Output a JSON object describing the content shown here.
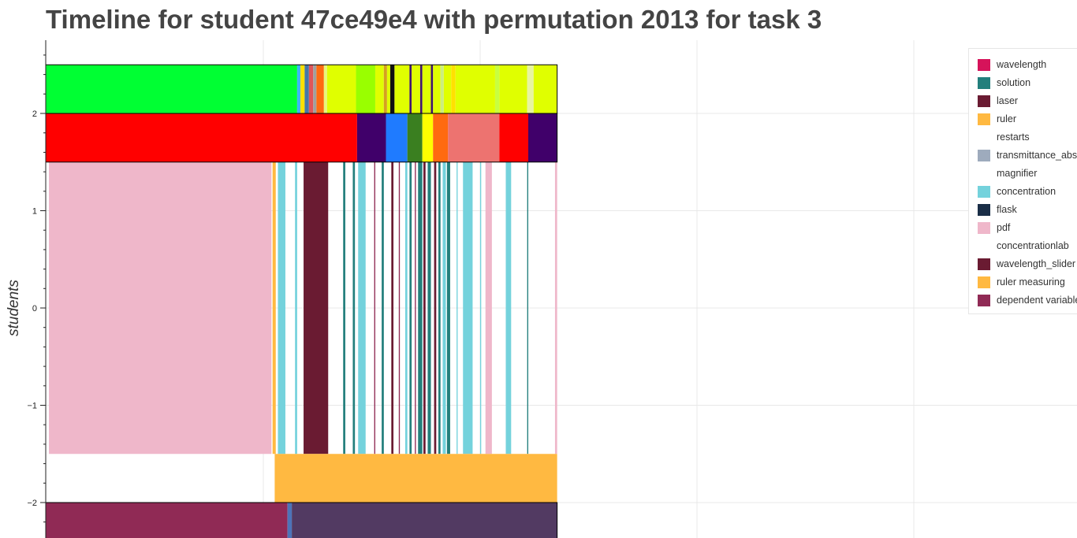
{
  "header": {
    "title": "Timeline for student 47ce49e4 with permutation 2013 for task 3"
  },
  "chart_data": {
    "type": "timeline",
    "title": "Timeline for student 47ce49e4 with permutation 2013 for task 3",
    "ylabel": "students",
    "xlabel": "",
    "y_ticks": [
      2,
      1,
      0,
      -1,
      -2
    ],
    "y_tick_labels": [
      "2",
      "1",
      "0",
      "−1",
      "−2"
    ],
    "x_range_visible": [
      0,
      4.78
    ],
    "y_range_visible": [
      -2.37,
      2.78
    ],
    "grid": true,
    "legend_position": "top-right",
    "legend": [
      {
        "label": "wavelength",
        "color": "#d6135a"
      },
      {
        "label": "solution",
        "color": "#237f7c"
      },
      {
        "label": "laser",
        "color": "#6a1b32"
      },
      {
        "label": "ruler",
        "color": "#ffb941"
      },
      {
        "label": "restarts",
        "color": "#ffffff"
      },
      {
        "label": "transmittance_abs",
        "color": "#9eabbd"
      },
      {
        "label": "magnifier",
        "color": "#ffffff"
      },
      {
        "label": "concentration",
        "color": "#74d2dc"
      },
      {
        "label": "flask",
        "color": "#1a2e47"
      },
      {
        "label": "pdf",
        "color": "#efb7ca"
      },
      {
        "label": "concentrationlab",
        "color": "#ffffff"
      },
      {
        "label": "wavelength_slider",
        "color": "#6a1b32"
      },
      {
        "label": "ruler measuring",
        "color": "#ffb941"
      },
      {
        "label": "dependent variable",
        "color": "#902a55"
      }
    ],
    "rows": [
      {
        "y_center": 2.25,
        "height": 0.5,
        "outlined": true,
        "segments": [
          {
            "start": 0.0,
            "end": 2.35,
            "color": "#00ff33"
          },
          {
            "start": 2.35,
            "end": 2.38,
            "color": "#3fb3ff"
          },
          {
            "start": 2.38,
            "end": 2.42,
            "color": "#ffe000"
          },
          {
            "start": 2.42,
            "end": 2.46,
            "color": "#4477aa"
          },
          {
            "start": 2.46,
            "end": 2.5,
            "color": "#e0555a"
          },
          {
            "start": 2.5,
            "end": 2.53,
            "color": "#a0a0a0"
          },
          {
            "start": 2.53,
            "end": 2.6,
            "color": "#ff6a10"
          },
          {
            "start": 2.6,
            "end": 2.63,
            "color": "#e8f57a"
          },
          {
            "start": 2.63,
            "end": 2.9,
            "color": "#e0ff00"
          },
          {
            "start": 2.9,
            "end": 3.08,
            "color": "#99ff00"
          },
          {
            "start": 3.08,
            "end": 3.16,
            "color": "#e0ff00"
          },
          {
            "start": 3.16,
            "end": 3.19,
            "color": "#d6a020"
          },
          {
            "start": 3.19,
            "end": 3.22,
            "color": "#e0ff00"
          },
          {
            "start": 3.22,
            "end": 3.26,
            "color": "#111111"
          },
          {
            "start": 3.26,
            "end": 3.4,
            "color": "#e0ff00"
          },
          {
            "start": 3.4,
            "end": 3.42,
            "color": "#40146e"
          },
          {
            "start": 3.42,
            "end": 3.5,
            "color": "#e0ff00"
          },
          {
            "start": 3.5,
            "end": 3.52,
            "color": "#40146e"
          },
          {
            "start": 3.52,
            "end": 3.6,
            "color": "#e0ff00"
          },
          {
            "start": 3.6,
            "end": 3.62,
            "color": "#40146e"
          },
          {
            "start": 3.62,
            "end": 3.69,
            "color": "#e0ff00"
          },
          {
            "start": 3.69,
            "end": 3.72,
            "color": "#ccee80"
          },
          {
            "start": 3.72,
            "end": 3.79,
            "color": "#e0ff00"
          },
          {
            "start": 3.79,
            "end": 3.83,
            "color": "#ffe000"
          },
          {
            "start": 3.83,
            "end": 4.2,
            "color": "#e0ff00"
          },
          {
            "start": 4.2,
            "end": 4.24,
            "color": "#c8ff40"
          },
          {
            "start": 4.24,
            "end": 4.5,
            "color": "#e0ff00"
          },
          {
            "start": 4.5,
            "end": 4.56,
            "color": "#e8f5a0"
          },
          {
            "start": 4.56,
            "end": 4.78,
            "color": "#e0ff00"
          }
        ]
      },
      {
        "y_center": 1.75,
        "height": 0.5,
        "outlined": true,
        "segments": [
          {
            "start": 0.0,
            "end": 2.91,
            "color": "#ff0000"
          },
          {
            "start": 2.91,
            "end": 3.18,
            "color": "#40006a"
          },
          {
            "start": 3.18,
            "end": 3.38,
            "color": "#1f7bff"
          },
          {
            "start": 3.38,
            "end": 3.52,
            "color": "#3a7f20"
          },
          {
            "start": 3.52,
            "end": 3.62,
            "color": "#ffff00"
          },
          {
            "start": 3.62,
            "end": 3.76,
            "color": "#ff6a10"
          },
          {
            "start": 3.76,
            "end": 4.24,
            "color": "#ed7370"
          },
          {
            "start": 4.24,
            "end": 4.51,
            "color": "#ff0000"
          },
          {
            "start": 4.51,
            "end": 4.78,
            "color": "#40006a"
          }
        ]
      },
      {
        "y_center": 0.0,
        "height": 3.0,
        "outlined": false,
        "segments": [
          {
            "start": 0.03,
            "end": 2.11,
            "color": "#efb7ca"
          },
          {
            "start": 2.12,
            "end": 2.15,
            "color": "#ffb941"
          },
          {
            "start": 2.17,
            "end": 2.24,
            "color": "#74d2dc"
          },
          {
            "start": 2.33,
            "end": 2.35,
            "color": "#74d2dc"
          },
          {
            "start": 2.41,
            "end": 2.64,
            "color": "#6a1b32"
          },
          {
            "start": 2.78,
            "end": 2.8,
            "color": "#237f7c"
          },
          {
            "start": 2.87,
            "end": 2.89,
            "color": "#237f7c"
          },
          {
            "start": 2.92,
            "end": 2.99,
            "color": "#74d2dc"
          },
          {
            "start": 3.07,
            "end": 3.08,
            "color": "#902a55"
          },
          {
            "start": 3.14,
            "end": 3.16,
            "color": "#237f7c"
          },
          {
            "start": 3.23,
            "end": 3.25,
            "color": "#6a1b32"
          },
          {
            "start": 3.3,
            "end": 3.31,
            "color": "#902a55"
          },
          {
            "start": 3.36,
            "end": 3.38,
            "color": "#74d2dc"
          },
          {
            "start": 3.4,
            "end": 3.42,
            "color": "#237f7c"
          },
          {
            "start": 3.45,
            "end": 3.46,
            "color": "#902a55"
          },
          {
            "start": 3.48,
            "end": 3.52,
            "color": "#237f7c"
          },
          {
            "start": 3.53,
            "end": 3.55,
            "color": "#6a1b32"
          },
          {
            "start": 3.57,
            "end": 3.6,
            "color": "#237f7c"
          },
          {
            "start": 3.63,
            "end": 3.65,
            "color": "#6a1b32"
          },
          {
            "start": 3.67,
            "end": 3.69,
            "color": "#237f7c"
          },
          {
            "start": 3.71,
            "end": 3.74,
            "color": "#74d2dc"
          },
          {
            "start": 3.75,
            "end": 3.78,
            "color": "#237f7c"
          },
          {
            "start": 3.84,
            "end": 3.85,
            "color": "#74d2dc"
          },
          {
            "start": 3.9,
            "end": 3.99,
            "color": "#74d2dc"
          },
          {
            "start": 4.06,
            "end": 4.07,
            "color": "#74d2dc"
          },
          {
            "start": 4.11,
            "end": 4.17,
            "color": "#efb7ca"
          },
          {
            "start": 4.3,
            "end": 4.35,
            "color": "#74d2dc"
          },
          {
            "start": 4.5,
            "end": 4.51,
            "color": "#237f7c"
          },
          {
            "start": 4.76,
            "end": 4.78,
            "color": "#efb7ca"
          }
        ]
      },
      {
        "y_center": -1.75,
        "height": 0.5,
        "outlined": false,
        "segments": [
          {
            "start": 2.14,
            "end": 4.78,
            "color": "#ffb941"
          }
        ]
      },
      {
        "y_center": -2.25,
        "height": 0.5,
        "outlined": true,
        "segments": [
          {
            "start": 0.0,
            "end": 2.26,
            "color": "#902a55"
          },
          {
            "start": 2.26,
            "end": 2.3,
            "color": "#4d74b8"
          },
          {
            "start": 2.3,
            "end": 4.78,
            "color": "#523a62"
          }
        ]
      }
    ]
  }
}
